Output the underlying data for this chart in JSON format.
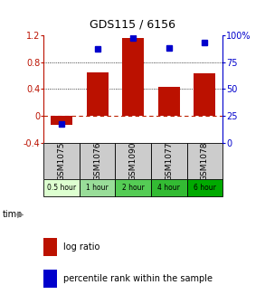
{
  "title": "GDS115 / 6156",
  "samples": [
    "GSM1075",
    "GSM1076",
    "GSM1090",
    "GSM1077",
    "GSM1078"
  ],
  "time_labels": [
    "0.5 hour",
    "1 hour",
    "2 hour",
    "4 hour",
    "6 hour"
  ],
  "log_ratios": [
    -0.13,
    0.65,
    1.15,
    0.43,
    0.63
  ],
  "percentile_ranks": [
    18,
    87,
    97,
    88,
    93
  ],
  "ylim_left": [
    -0.4,
    1.2
  ],
  "ylim_right": [
    0,
    100
  ],
  "y_ticks_left": [
    -0.4,
    0.0,
    0.4,
    0.8,
    1.2
  ],
  "y_ticks_right": [
    0,
    25,
    50,
    75,
    100
  ],
  "bar_color": "#bb1100",
  "dot_color": "#0000cc",
  "zero_line_color": "#bb2200",
  "bg_color": "#ffffff",
  "sample_bg": "#cccccc",
  "time_colors": [
    "#ddffd0",
    "#aaddaa",
    "#66cc66",
    "#33bb33",
    "#00bb00"
  ],
  "legend_bar_label": "log ratio",
  "legend_dot_label": "percentile rank within the sample",
  "title_fontsize": 9,
  "axis_fontsize": 7,
  "label_fontsize": 6.5,
  "legend_fontsize": 7
}
